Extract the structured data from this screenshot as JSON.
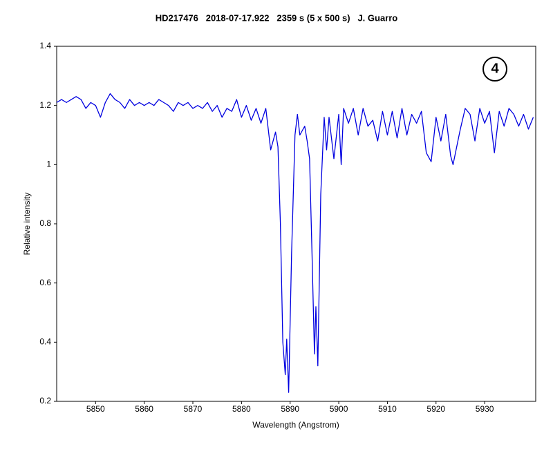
{
  "chart_data": {
    "type": "line",
    "title": "HD217476   2018-07-17.922   2359 s (5 x 500 s)   J. Guarro",
    "x_label": "Wavelength (Angstrom)",
    "y_label": "Relative intensity",
    "annotation": "4",
    "x": [
      5842,
      5843,
      5844,
      5845,
      5846,
      5847,
      5848,
      5849,
      5850,
      5851,
      5852,
      5853,
      5854,
      5855,
      5856,
      5857,
      5858,
      5859,
      5860,
      5861,
      5862,
      5863,
      5864,
      5865,
      5866,
      5867,
      5868,
      5869,
      5870,
      5871,
      5872,
      5873,
      5874,
      5875,
      5876,
      5877,
      5878,
      5879,
      5880,
      5881,
      5882,
      5883,
      5884,
      5885,
      5886,
      5887,
      5887.5,
      5888,
      5888.5,
      5889,
      5889.3,
      5889.7,
      5890.3,
      5891,
      5891.5,
      5892,
      5893,
      5893.5,
      5894,
      5894.5,
      5895,
      5895.3,
      5895.7,
      5896.3,
      5897,
      5897.5,
      5898,
      5899,
      5900,
      5900.5,
      5901,
      5902,
      5903,
      5904,
      5905,
      5906,
      5907,
      5908,
      5909,
      5910,
      5911,
      5912,
      5913,
      5914,
      5915,
      5916,
      5917,
      5918,
      5919,
      5920,
      5921,
      5922,
      5923,
      5923.5,
      5924,
      5925,
      5926,
      5927,
      5928,
      5929,
      5930,
      5931,
      5932,
      5933,
      5934,
      5935,
      5936,
      5937,
      5938,
      5939,
      5940
    ],
    "series": [
      {
        "name": "HD217476",
        "color": "#0000e0",
        "values": [
          1.21,
          1.22,
          1.21,
          1.22,
          1.23,
          1.22,
          1.19,
          1.21,
          1.2,
          1.16,
          1.21,
          1.24,
          1.22,
          1.21,
          1.19,
          1.22,
          1.2,
          1.21,
          1.2,
          1.21,
          1.2,
          1.22,
          1.21,
          1.2,
          1.18,
          1.21,
          1.2,
          1.21,
          1.19,
          1.2,
          1.19,
          1.21,
          1.18,
          1.2,
          1.16,
          1.19,
          1.18,
          1.22,
          1.16,
          1.2,
          1.15,
          1.19,
          1.14,
          1.19,
          1.05,
          1.11,
          1.06,
          0.8,
          0.4,
          0.29,
          0.41,
          0.23,
          0.7,
          1.1,
          1.17,
          1.1,
          1.13,
          1.08,
          1.02,
          0.7,
          0.36,
          0.52,
          0.32,
          0.9,
          1.16,
          1.05,
          1.16,
          1.02,
          1.17,
          1.0,
          1.19,
          1.14,
          1.19,
          1.1,
          1.19,
          1.13,
          1.15,
          1.08,
          1.18,
          1.1,
          1.18,
          1.09,
          1.19,
          1.1,
          1.17,
          1.14,
          1.18,
          1.04,
          1.01,
          1.16,
          1.08,
          1.17,
          1.03,
          1.0,
          1.04,
          1.12,
          1.19,
          1.17,
          1.08,
          1.19,
          1.14,
          1.18,
          1.04,
          1.18,
          1.13,
          1.19,
          1.17,
          1.13,
          1.17,
          1.12,
          1.16
        ]
      }
    ],
    "xlim": [
      5842,
      5940.5
    ],
    "ylim": [
      0.2,
      1.4
    ],
    "xticks": [
      5850,
      5860,
      5870,
      5880,
      5890,
      5900,
      5910,
      5920,
      5930
    ],
    "yticks": [
      0.2,
      0.4,
      0.6,
      0.8,
      1,
      1.2,
      1.4
    ],
    "grid": false
  }
}
